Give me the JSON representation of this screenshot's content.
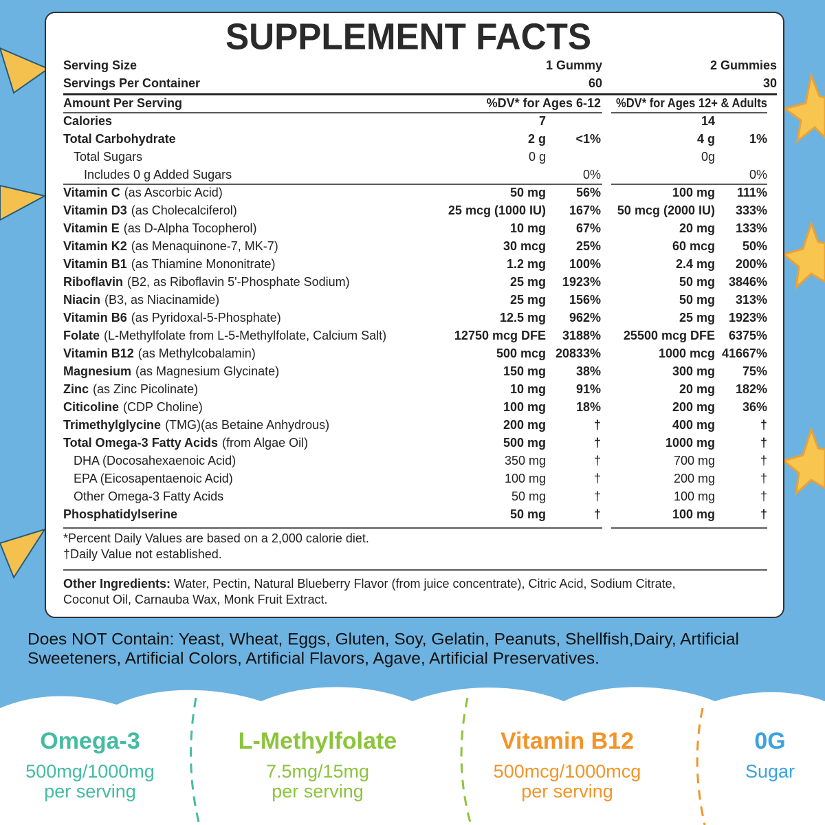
{
  "title": "SUPPLEMENT FACTS",
  "serving": [
    [
      "Serving Size",
      "1 Gummy",
      "2 Gummies"
    ],
    [
      "Servings Per Container",
      "60",
      "30"
    ]
  ],
  "header": [
    "Amount Per Serving",
    "%DV* for Ages 6-12",
    "%DV* for Ages 12+ & Adults"
  ],
  "macros": [
    {
      "name": "Calories",
      "amt_a": "7",
      "amt_b": "14"
    },
    {
      "name": "Total Carbohydrate",
      "amt_a": "2 g",
      "dv_a": "<1%",
      "amt_b": "4 g",
      "dv_b": "1%"
    },
    {
      "name": "Total Sugars",
      "amt_a": "0 g",
      "amt_b": "0g"
    },
    {
      "name": "Includes 0 g Added Sugars",
      "dv_a": "0%",
      "dv_b": "0%"
    }
  ],
  "nutrients": [
    {
      "name": "Vitamin C",
      "note": "(as Ascorbic Acid)",
      "amt_a": "50 mg",
      "dv_a": "56%",
      "amt_b": "100 mg",
      "dv_b": "111%"
    },
    {
      "name": "Vitamin D3",
      "note": "(as Cholecalciferol)",
      "amt_a": "25 mcg (1000 IU)",
      "dv_a": "167%",
      "amt_b": "50 mcg (2000 IU)",
      "dv_b": "333%"
    },
    {
      "name": "Vitamin E",
      "note": "(as D-Alpha Tocopherol)",
      "amt_a": "10 mg",
      "dv_a": "67%",
      "amt_b": "20 mg",
      "dv_b": "133%"
    },
    {
      "name": "Vitamin K2",
      "note": "(as Menaquinone-7, MK-7)",
      "amt_a": "30 mcg",
      "dv_a": "25%",
      "amt_b": "60 mcg",
      "dv_b": "50%"
    },
    {
      "name": "Vitamin B1",
      "note": "(as Thiamine Mononitrate)",
      "amt_a": "1.2 mg",
      "dv_a": "100%",
      "amt_b": "2.4 mg",
      "dv_b": "200%"
    },
    {
      "name": "Riboflavin",
      "note": "(B2, as Riboflavin 5'-Phosphate Sodium)",
      "amt_a": "25 mg",
      "dv_a": "1923%",
      "amt_b": "50 mg",
      "dv_b": "3846%"
    },
    {
      "name": "Niacin",
      "note": "(B3, as Niacinamide)",
      "amt_a": "25 mg",
      "dv_a": "156%",
      "amt_b": "50 mg",
      "dv_b": "313%"
    },
    {
      "name": "Vitamin B6",
      "note": "(as Pyridoxal-5-Phosphate)",
      "amt_a": "12.5 mg",
      "dv_a": "962%",
      "amt_b": "25 mg",
      "dv_b": "1923%"
    },
    {
      "name": "Folate",
      "note": "(L-Methylfolate from L-5-Methylfolate, Calcium Salt)",
      "amt_a": "12750 mcg DFE",
      "dv_a": "3188%",
      "amt_b": "25500 mcg DFE",
      "dv_b": "6375%"
    },
    {
      "name": "Vitamin B12",
      "note": "(as Methylcobalamin)",
      "amt_a": "500 mcg",
      "dv_a": "20833%",
      "amt_b": "1000 mcg",
      "dv_b": "41667%"
    },
    {
      "name": "Magnesium",
      "note": "(as Magnesium Glycinate)",
      "amt_a": "150 mg",
      "dv_a": "38%",
      "amt_b": "300 mg",
      "dv_b": "75%"
    },
    {
      "name": "Zinc",
      "note": "(as Zinc Picolinate)",
      "amt_a": "10 mg",
      "dv_a": "91%",
      "amt_b": "20 mg",
      "dv_b": "182%"
    },
    {
      "name": "Citicoline",
      "note": "(CDP Choline)",
      "amt_a": "100 mg",
      "dv_a": "18%",
      "amt_b": "200 mg",
      "dv_b": "36%"
    },
    {
      "name": "Trimethylglycine",
      "note": "(TMG)(as Betaine Anhydrous)",
      "amt_a": "200 mg",
      "dv_a": "†",
      "amt_b": "400 mg",
      "dv_b": "†"
    },
    {
      "name": "Total Omega-3 Fatty Acids",
      "note": "(from Algae Oil)",
      "amt_a": "500 mg",
      "dv_a": "†",
      "amt_b": "1000 mg",
      "dv_b": "†"
    },
    {
      "name": "DHA (Docosahexaenoic Acid)",
      "amt_a": "350 mg",
      "dv_a": "†",
      "amt_b": "700 mg",
      "dv_b": "†"
    },
    {
      "name": "EPA (Eicosapentaenoic Acid)",
      "amt_a": "100 mg",
      "dv_a": "†",
      "amt_b": "200 mg",
      "dv_b": "†"
    },
    {
      "name": "Other Omega-3 Fatty Acids",
      "amt_a": "50 mg",
      "dv_a": "†",
      "amt_b": "100 mg",
      "dv_b": "†"
    },
    {
      "name": "Phosphatidylserine",
      "amt_a": "50 mg",
      "dv_a": "†",
      "amt_b": "100 mg",
      "dv_b": "†"
    }
  ],
  "footnotes": [
    "*Percent Daily Values are based on a 2,000 calorie diet.",
    "†Daily Value not established."
  ],
  "other_ingredients": {
    "label": "Other Ingredients:",
    "lines": [
      "Water, Pectin, Natural Blueberry Flavor (from juice concentrate), Citric Acid, Sodium Citrate,",
      "Coconut Oil, Carnauba Wax, Monk Fruit Extract."
    ]
  },
  "does_not_contain": [
    "Does NOT Contain: Yeast, Wheat, Eggs, Gluten, Soy, Gelatin, Peanuts, Shellfish,Dairy, Artificial",
    "Sweeteners, Artificial Colors, Artificial Flavors, Agave, Artificial Preservatives."
  ],
  "highlights": [
    {
      "title": "Omega-3",
      "lines": [
        "500mg/1000mg",
        "per serving"
      ],
      "color": "#45bba3"
    },
    {
      "title": "L-Methylfolate",
      "lines": [
        "7.5mg/15mg",
        "per serving"
      ],
      "color": "#8cc43c"
    },
    {
      "title": "Vitamin B12",
      "lines": [
        "500mcg/1000mcg",
        "per serving"
      ],
      "color": "#f1952a"
    },
    {
      "title": "0G",
      "lines": [
        "Sugar"
      ],
      "color": "#3ba3de"
    }
  ]
}
